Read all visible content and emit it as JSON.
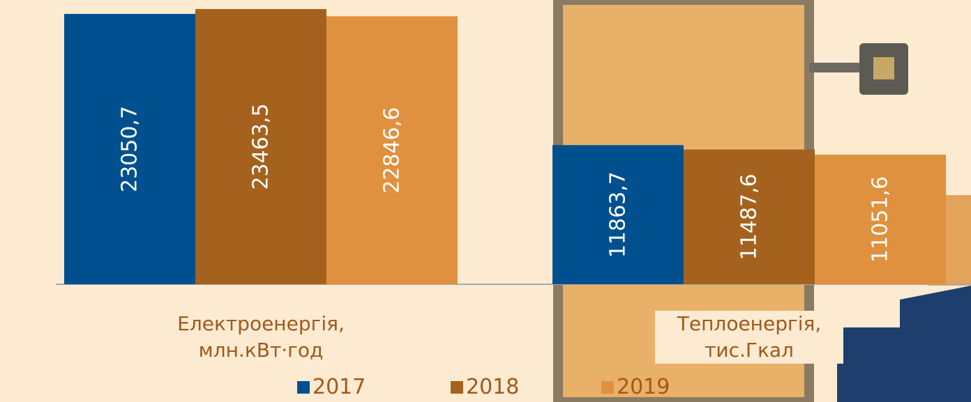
{
  "chart_data": {
    "type": "bar",
    "categories": [
      "Електроенергія,\nмлн.кВт·год",
      "Теплоенергія,\nтис.Гкал"
    ],
    "series": [
      {
        "name": "2017",
        "color": "#00508f",
        "values": [
          23050.7,
          11863.7
        ],
        "value_labels": [
          "23050,7",
          "11863,7"
        ]
      },
      {
        "name": "2018",
        "color": "#a5621e",
        "values": [
          23463.5,
          11487.6
        ],
        "value_labels": [
          "23463,5",
          "11487,6"
        ]
      },
      {
        "name": "2019",
        "color": "#e0913f",
        "values": [
          22846.6,
          11051.6
        ],
        "value_labels": [
          "22846,6",
          "11051,6"
        ]
      }
    ],
    "legend": "bottom"
  }
}
